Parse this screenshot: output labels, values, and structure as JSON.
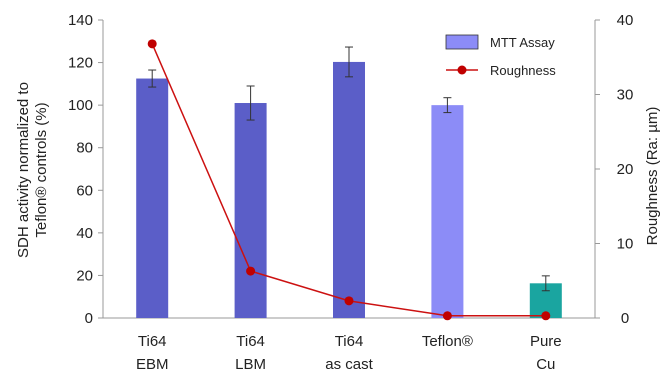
{
  "chart_data": {
    "type": "bar",
    "categories": [
      [
        "Ti64",
        "EBM"
      ],
      [
        "Ti64",
        "LBM"
      ],
      [
        "Ti64",
        "as cast"
      ],
      [
        "Teflon®"
      ],
      [
        "Pure",
        "Cu"
      ]
    ],
    "series": [
      {
        "name": "MTT Assay",
        "type": "bar",
        "axis": "left",
        "values": [
          112.5,
          101,
          120.3,
          100,
          16.3
        ],
        "errors": [
          4,
          8,
          7,
          3.5,
          3.5
        ],
        "colors": [
          "#5b5ec8",
          "#5b5ec8",
          "#5b5ec8",
          "#8c8cf7",
          "#1aa5a0"
        ],
        "legend_color": "#8c8cf7"
      },
      {
        "name": "Roughness",
        "type": "line",
        "axis": "right",
        "values": [
          36.8,
          6.3,
          2.3,
          0.3,
          0.3
        ],
        "color": "#cc1111",
        "marker_color": "#c00000"
      }
    ],
    "ylabel": [
      "SDH activity normalized to",
      "Teflon® controls  (%)"
    ],
    "y2label": "Roughness (Ra: µm)",
    "ylim": [
      0,
      140
    ],
    "yticks": [
      0,
      20,
      40,
      60,
      80,
      100,
      120,
      140
    ],
    "y2lim": [
      0,
      40
    ],
    "y2ticks": [
      0,
      10,
      20,
      30,
      40
    ],
    "legend_position": "top-right",
    "grid": false
  }
}
